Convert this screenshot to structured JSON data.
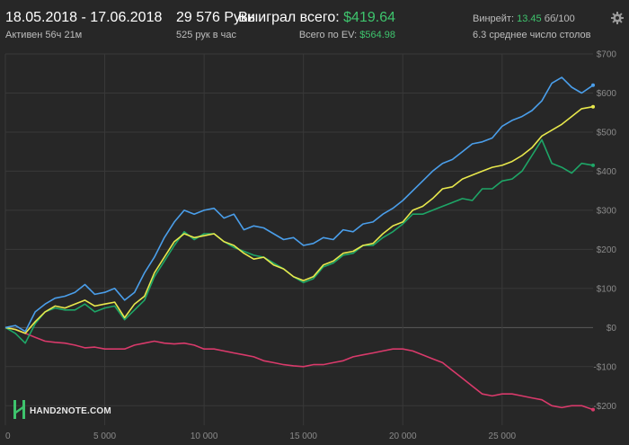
{
  "header": {
    "date_range": "18.05.2018 - 17.06.2018",
    "active_time": "Активен 56ч 21м",
    "hands": "29 576 Руки",
    "hands_per_hour": "525 рук в час",
    "won_total_label": "Выиграл всего:",
    "won_total_value": "$419.64",
    "ev_total_label": "Всего по EV:",
    "ev_total_value": "$564.98",
    "winrate_label": "Винрейт:",
    "winrate_value": "13.45",
    "winrate_unit": "бб/100",
    "tables_text": "6.3 среднее число столов"
  },
  "icons": {
    "settings": "gear-icon",
    "logo": "hand2note-logo-icon"
  },
  "logo_text": "HAND2NOTE.COM",
  "chart_data": {
    "type": "line",
    "xlim": [
      0,
      29576
    ],
    "ylim": [
      -250,
      700
    ],
    "x_ticks": [
      {
        "value": 0,
        "label": "0"
      },
      {
        "value": 5000,
        "label": "5 000"
      },
      {
        "value": 10000,
        "label": "10 000"
      },
      {
        "value": 15000,
        "label": "15 000"
      },
      {
        "value": 20000,
        "label": "20 000"
      },
      {
        "value": 25000,
        "label": "25 000"
      }
    ],
    "y_ticks": [
      {
        "value": 700,
        "label": "$700"
      },
      {
        "value": 600,
        "label": "$600"
      },
      {
        "value": 500,
        "label": "$500"
      },
      {
        "value": 400,
        "label": "$400"
      },
      {
        "value": 300,
        "label": "$300"
      },
      {
        "value": 200,
        "label": "$200"
      },
      {
        "value": 100,
        "label": "$100"
      },
      {
        "value": 0,
        "label": "$0"
      },
      {
        "value": -100,
        "label": "-$100"
      },
      {
        "value": -200,
        "label": "-$200"
      }
    ],
    "grid": true,
    "series": [
      {
        "color": "#4a9eea",
        "x": [
          0,
          500,
          1000,
          1500,
          2000,
          2500,
          3000,
          3500,
          4000,
          4500,
          5000,
          5500,
          6000,
          6500,
          7000,
          7500,
          8000,
          8500,
          9000,
          9500,
          10000,
          10500,
          11000,
          11500,
          12000,
          12500,
          13000,
          13500,
          14000,
          14500,
          15000,
          15500,
          16000,
          16500,
          17000,
          17500,
          18000,
          18500,
          19000,
          19500,
          20000,
          20500,
          21000,
          21500,
          22000,
          22500,
          23000,
          23500,
          24000,
          24500,
          25000,
          25500,
          26000,
          26500,
          27000,
          27500,
          28000,
          28500,
          29000,
          29576
        ],
        "y": [
          0,
          5,
          -10,
          40,
          60,
          75,
          80,
          90,
          110,
          85,
          90,
          100,
          70,
          90,
          140,
          180,
          230,
          270,
          300,
          290,
          300,
          305,
          280,
          290,
          250,
          260,
          255,
          240,
          225,
          230,
          210,
          215,
          230,
          225,
          250,
          245,
          265,
          270,
          290,
          305,
          325,
          350,
          375,
          400,
          420,
          430,
          450,
          470,
          475,
          485,
          515,
          530,
          540,
          555,
          580,
          625,
          640,
          615,
          600,
          620
        ]
      },
      {
        "color": "#e8e84c",
        "x": [
          0,
          500,
          1000,
          1500,
          2000,
          2500,
          3000,
          3500,
          4000,
          4500,
          5000,
          5500,
          6000,
          6500,
          7000,
          7500,
          8000,
          8500,
          9000,
          9500,
          10000,
          10500,
          11000,
          11500,
          12000,
          12500,
          13000,
          13500,
          14000,
          14500,
          15000,
          15500,
          16000,
          16500,
          17000,
          17500,
          18000,
          18500,
          19000,
          19500,
          20000,
          20500,
          21000,
          21500,
          22000,
          22500,
          23000,
          23500,
          24000,
          24500,
          25000,
          25500,
          26000,
          26500,
          27000,
          27500,
          28000,
          28500,
          29000,
          29576
        ],
        "y": [
          0,
          -5,
          -15,
          15,
          40,
          55,
          50,
          60,
          70,
          55,
          60,
          65,
          25,
          60,
          80,
          140,
          180,
          220,
          240,
          230,
          235,
          240,
          220,
          210,
          190,
          175,
          180,
          160,
          150,
          130,
          120,
          130,
          160,
          170,
          190,
          195,
          210,
          215,
          240,
          260,
          270,
          300,
          310,
          330,
          355,
          360,
          380,
          390,
          400,
          410,
          415,
          425,
          440,
          460,
          490,
          505,
          520,
          540,
          560,
          565
        ]
      },
      {
        "color": "#1ea667",
        "x": [
          0,
          500,
          1000,
          1500,
          2000,
          2500,
          3000,
          3500,
          4000,
          4500,
          5000,
          5500,
          6000,
          6500,
          7000,
          7500,
          8000,
          8500,
          9000,
          9500,
          10000,
          10500,
          11000,
          11500,
          12000,
          12500,
          13000,
          13500,
          14000,
          14500,
          15000,
          15500,
          16000,
          16500,
          17000,
          17500,
          18000,
          18500,
          19000,
          19500,
          20000,
          20500,
          21000,
          21500,
          22000,
          22500,
          23000,
          23500,
          24000,
          24500,
          25000,
          25500,
          26000,
          26500,
          27000,
          27500,
          28000,
          28500,
          29000,
          29576
        ],
        "y": [
          0,
          -15,
          -40,
          10,
          40,
          50,
          45,
          45,
          60,
          40,
          50,
          55,
          20,
          45,
          70,
          130,
          170,
          210,
          245,
          225,
          240,
          240,
          220,
          205,
          195,
          185,
          180,
          165,
          150,
          130,
          115,
          125,
          155,
          165,
          185,
          190,
          210,
          210,
          230,
          245,
          265,
          290,
          290,
          300,
          310,
          320,
          330,
          325,
          355,
          355,
          375,
          380,
          400,
          440,
          480,
          420,
          410,
          395,
          420,
          415
        ]
      },
      {
        "color": "#d93a6b",
        "x": [
          0,
          500,
          1000,
          1500,
          2000,
          2500,
          3000,
          3500,
          4000,
          4500,
          5000,
          5500,
          6000,
          6500,
          7000,
          7500,
          8000,
          8500,
          9000,
          9500,
          10000,
          10500,
          11000,
          11500,
          12000,
          12500,
          13000,
          13500,
          14000,
          14500,
          15000,
          15500,
          16000,
          16500,
          17000,
          17500,
          18000,
          18500,
          19000,
          19500,
          20000,
          20500,
          21000,
          21500,
          22000,
          22500,
          23000,
          23500,
          24000,
          24500,
          25000,
          25500,
          26000,
          26500,
          27000,
          27500,
          28000,
          28500,
          29000,
          29576
        ],
        "y": [
          0,
          -5,
          -15,
          -25,
          -35,
          -38,
          -40,
          -45,
          -52,
          -50,
          -55,
          -55,
          -55,
          -45,
          -40,
          -35,
          -40,
          -42,
          -40,
          -45,
          -55,
          -55,
          -60,
          -65,
          -70,
          -75,
          -85,
          -90,
          -95,
          -98,
          -100,
          -95,
          -95,
          -90,
          -85,
          -75,
          -70,
          -65,
          -60,
          -55,
          -55,
          -60,
          -70,
          -80,
          -90,
          -110,
          -130,
          -150,
          -170,
          -175,
          -170,
          -170,
          -175,
          -180,
          -185,
          -200,
          -205,
          -200,
          -200,
          -210
        ]
      }
    ]
  }
}
